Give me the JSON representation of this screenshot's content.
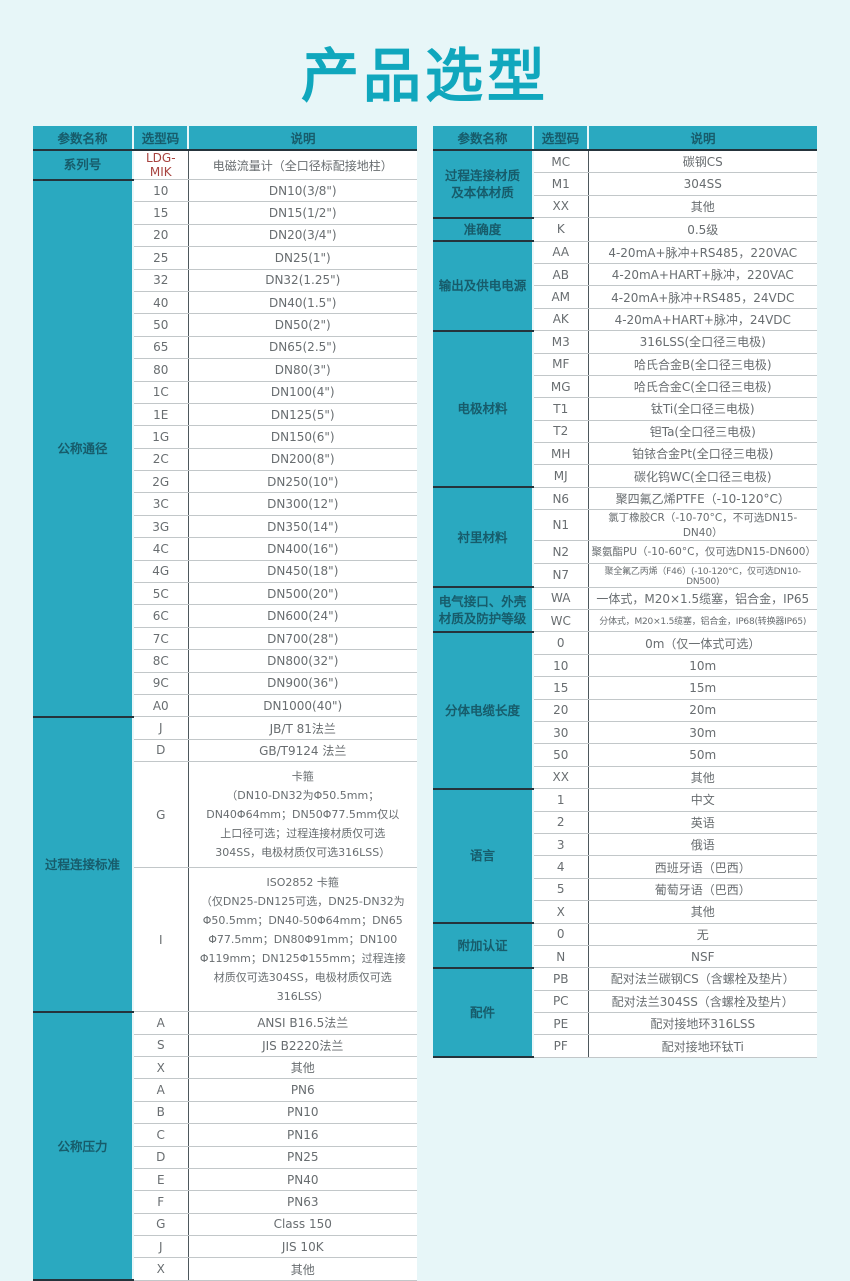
{
  "title": "产品选型",
  "tables": {
    "left": {
      "columns": {
        "param": "参数名称",
        "code": "选型码",
        "desc": "说明"
      },
      "groups": [
        {
          "label": "系列号",
          "rows": [
            {
              "code": "LDG-MIK",
              "desc": "电磁流量计（全口径标配接地柱）",
              "accent": true
            }
          ]
        },
        {
          "label": "公称通径",
          "rows": [
            {
              "code": "10",
              "desc": "DN10(3/8\")"
            },
            {
              "code": "15",
              "desc": "DN15(1/2\")"
            },
            {
              "code": "20",
              "desc": "DN20(3/4\")"
            },
            {
              "code": "25",
              "desc": "DN25(1\")"
            },
            {
              "code": "32",
              "desc": "DN32(1.25\")"
            },
            {
              "code": "40",
              "desc": "DN40(1.5\")"
            },
            {
              "code": "50",
              "desc": "DN50(2\")"
            },
            {
              "code": "65",
              "desc": "DN65(2.5\")"
            },
            {
              "code": "80",
              "desc": "DN80(3\")"
            },
            {
              "code": "1C",
              "desc": "DN100(4\")"
            },
            {
              "code": "1E",
              "desc": "DN125(5\")"
            },
            {
              "code": "1G",
              "desc": "DN150(6\")"
            },
            {
              "code": "2C",
              "desc": "DN200(8\")"
            },
            {
              "code": "2G",
              "desc": "DN250(10\")"
            },
            {
              "code": "3C",
              "desc": "DN300(12\")"
            },
            {
              "code": "3G",
              "desc": "DN350(14\")"
            },
            {
              "code": "4C",
              "desc": "DN400(16\")"
            },
            {
              "code": "4G",
              "desc": "DN450(18\")"
            },
            {
              "code": "5C",
              "desc": "DN500(20\")"
            },
            {
              "code": "6C",
              "desc": "DN600(24\")"
            },
            {
              "code": "7C",
              "desc": "DN700(28\")"
            },
            {
              "code": "8C",
              "desc": "DN800(32\")"
            },
            {
              "code": "9C",
              "desc": "DN900(36\")"
            },
            {
              "code": "A0",
              "desc": "DN1000(40\")"
            }
          ]
        },
        {
          "label": "过程连接标准",
          "rows": [
            {
              "code": "J",
              "desc": "JB/T 81法兰"
            },
            {
              "code": "D",
              "desc": "GB/T9124 法兰"
            },
            {
              "code": "G",
              "desc": "卡箍\n（DN10-DN32为Φ50.5mm；\nDN40Φ64mm；DN50Φ77.5mm仅以\n上口径可选；过程连接材质仅可选\n304SS，电极材质仅可选316LSS）"
            },
            {
              "code": "I",
              "desc": "ISO2852 卡箍\n（仅DN25-DN125可选，DN25-DN32为\nΦ50.5mm；DN40-50Φ64mm；DN65\nΦ77.5mm；DN80Φ91mm；DN100\nΦ119mm；DN125Φ155mm；过程连接\n材质仅可选304SS，电极材质仅可选316LSS）"
            }
          ]
        },
        {
          "label": "公称压力",
          "rows": [
            {
              "code": "A",
              "desc": "ANSI B16.5法兰"
            },
            {
              "code": "S",
              "desc": "JIS B2220法兰"
            },
            {
              "code": "X",
              "desc": "其他"
            },
            {
              "code": "A",
              "desc": "PN6"
            },
            {
              "code": "B",
              "desc": "PN10"
            },
            {
              "code": "C",
              "desc": "PN16"
            },
            {
              "code": "D",
              "desc": "PN25"
            },
            {
              "code": "E",
              "desc": "PN40"
            },
            {
              "code": "F",
              "desc": "PN63"
            },
            {
              "code": "G",
              "desc": "Class 150"
            },
            {
              "code": "J",
              "desc": "JIS 10K"
            },
            {
              "code": "X",
              "desc": "其他"
            }
          ]
        }
      ]
    },
    "right": {
      "columns": {
        "param": "参数名称",
        "code": "选型码",
        "desc": "说明"
      },
      "groups": [
        {
          "label": "过程连接材质\n及本体材质",
          "rows": [
            {
              "code": "MC",
              "desc": "碳钢CS"
            },
            {
              "code": "M1",
              "desc": "304SS"
            },
            {
              "code": "XX",
              "desc": "其他"
            }
          ]
        },
        {
          "label": "准确度",
          "rows": [
            {
              "code": "K",
              "desc": "0.5级"
            }
          ]
        },
        {
          "label": "输出及供电电源",
          "rows": [
            {
              "code": "AA",
              "desc": "4-20mA+脉冲+RS485，220VAC"
            },
            {
              "code": "AB",
              "desc": "4-20mA+HART+脉冲，220VAC"
            },
            {
              "code": "AM",
              "desc": "4-20mA+脉冲+RS485，24VDC"
            },
            {
              "code": "AK",
              "desc": "4-20mA+HART+脉冲，24VDC"
            }
          ]
        },
        {
          "label": "电极材料",
          "rows": [
            {
              "code": "M3",
              "desc": "316LSS(全口径三电极)"
            },
            {
              "code": "MF",
              "desc": "哈氏合金B(全口径三电极)"
            },
            {
              "code": "MG",
              "desc": "哈氏合金C(全口径三电极)"
            },
            {
              "code": "T1",
              "desc": "钛Ti(全口径三电极)"
            },
            {
              "code": "T2",
              "desc": "钽Ta(全口径三电极)"
            },
            {
              "code": "MH",
              "desc": "铂铱合金Pt(全口径三电极)"
            },
            {
              "code": "MJ",
              "desc": "碳化钨WC(全口径三电极)"
            }
          ]
        },
        {
          "label": "衬里材料",
          "rows": [
            {
              "code": "N6",
              "desc": "聚四氟乙烯PTFE（-10-120°C）"
            },
            {
              "code": "N1",
              "desc": "氯丁橡胶CR（-10-70°C，不可选DN15-DN40）"
            },
            {
              "code": "N2",
              "desc": "聚氨酯PU（-10-60°C，仅可选DN15-DN600）"
            },
            {
              "code": "N7",
              "desc": "聚全氟乙丙烯（F46）(-10-120°C，仅可选DN10-DN500)"
            }
          ]
        },
        {
          "label": "电气接口、外壳\n材质及防护等级",
          "rows": [
            {
              "code": "WA",
              "desc": "一体式，M20×1.5缆塞，铝合金，IP65"
            },
            {
              "code": "WC",
              "desc": "分体式，M20×1.5缆塞，铝合金，IP68(转换器IP65)"
            }
          ]
        },
        {
          "label": "分体电缆长度",
          "rows": [
            {
              "code": "0",
              "desc": "0m（仅一体式可选）"
            },
            {
              "code": "10",
              "desc": "10m"
            },
            {
              "code": "15",
              "desc": "15m"
            },
            {
              "code": "20",
              "desc": "20m"
            },
            {
              "code": "30",
              "desc": "30m"
            },
            {
              "code": "50",
              "desc": "50m"
            },
            {
              "code": "XX",
              "desc": "其他"
            }
          ]
        },
        {
          "label": "语言",
          "rows": [
            {
              "code": "1",
              "desc": "中文"
            },
            {
              "code": "2",
              "desc": "英语"
            },
            {
              "code": "3",
              "desc": "俄语"
            },
            {
              "code": "4",
              "desc": "西班牙语（巴西）"
            },
            {
              "code": "5",
              "desc": "葡萄牙语（巴西）"
            },
            {
              "code": "X",
              "desc": "其他"
            }
          ]
        },
        {
          "label": "附加认证",
          "rows": [
            {
              "code": "0",
              "desc": "无"
            },
            {
              "code": "N",
              "desc": "NSF"
            }
          ]
        },
        {
          "label": "配件",
          "rows": [
            {
              "code": "PB",
              "desc": "配对法兰碳钢CS（含螺栓及垫片）"
            },
            {
              "code": "PC",
              "desc": "配对法兰304SS（含螺栓及垫片）"
            },
            {
              "code": "PE",
              "desc": "配对接地环316LSS"
            },
            {
              "code": "PF",
              "desc": "配对接地环钛Ti"
            }
          ]
        }
      ]
    }
  }
}
